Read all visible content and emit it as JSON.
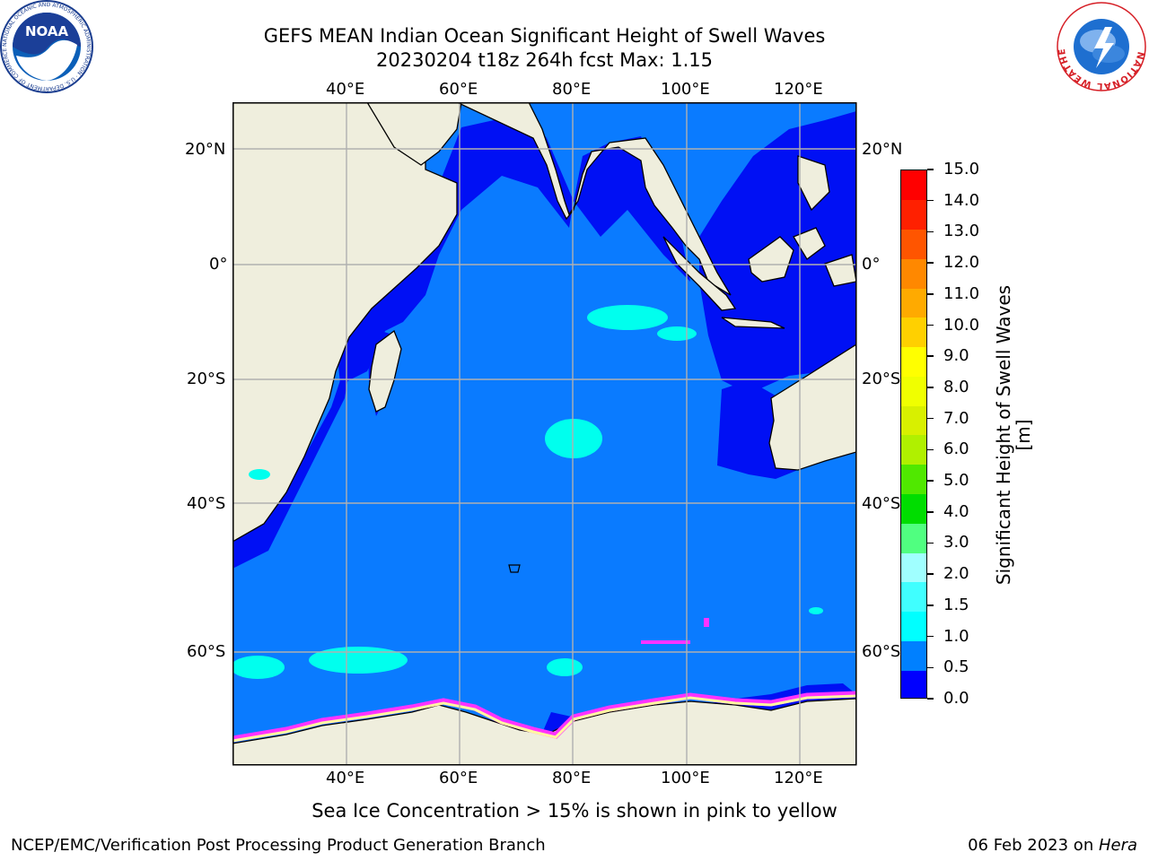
{
  "header": {
    "title_line1": "GEFS MEAN Indian Ocean Significant Height of Swell Waves",
    "title_line2": "20230204 t18z 264h fcst   Max: 1.15",
    "left_logo_text": "NOAA",
    "left_logo_ring": "NATIONAL OCEANIC AND ATMOSPHERIC ADMINISTRATION · U.S. DEPARTMENT OF COMMERCE",
    "right_logo_ring": "NATIONAL WEATHER SERVICE"
  },
  "map": {
    "lon_ticks_top": [
      "40°E",
      "60°E",
      "80°E",
      "100°E",
      "120°E"
    ],
    "lon_ticks_bottom": [
      "40°E",
      "60°E",
      "80°E",
      "100°E",
      "120°E"
    ],
    "lat_ticks_left": [
      "20°N",
      "0°",
      "20°S",
      "40°S",
      "60°S"
    ],
    "lat_ticks_right": [
      "20°N",
      "0°",
      "20°S",
      "40°S",
      "60°S"
    ],
    "colors": {
      "land": "#efeedd",
      "ocean_main": "#0a7bff",
      "coastal_band": "#0010f4",
      "swell_patch": "#00ffee",
      "ice_pink": "#ff33ff",
      "ice_yellow": "#fff8a0"
    }
  },
  "colorbar": {
    "label": "Significant Height of Swell Waves [m]",
    "ticks": [
      "15.0",
      "14.0",
      "13.0",
      "12.0",
      "11.0",
      "10.0",
      "9.0",
      "8.0",
      "7.0",
      "6.0",
      "5.0",
      "4.0",
      "3.0",
      "2.0",
      "1.5",
      "1.0",
      "0.5",
      "0.0"
    ],
    "bands_bottom_to_top": [
      "#0000ff",
      "#0080ff",
      "#00ffff",
      "#40ffff",
      "#a0ffff",
      "#50ff80",
      "#00dd00",
      "#50e800",
      "#b0f000",
      "#d8f000",
      "#f0ff00",
      "#ffff00",
      "#ffd000",
      "#ffaa00",
      "#ff8800",
      "#ff5500",
      "#ff2000",
      "#ff0000"
    ]
  },
  "footer": {
    "caption": "Sea Ice Concentration > 15% is shown in pink to yellow",
    "left": "NCEP/EMC/Verification Post Processing Product Generation Branch",
    "right_prefix": "06 Feb 2023 on ",
    "right_host": "Hera"
  }
}
